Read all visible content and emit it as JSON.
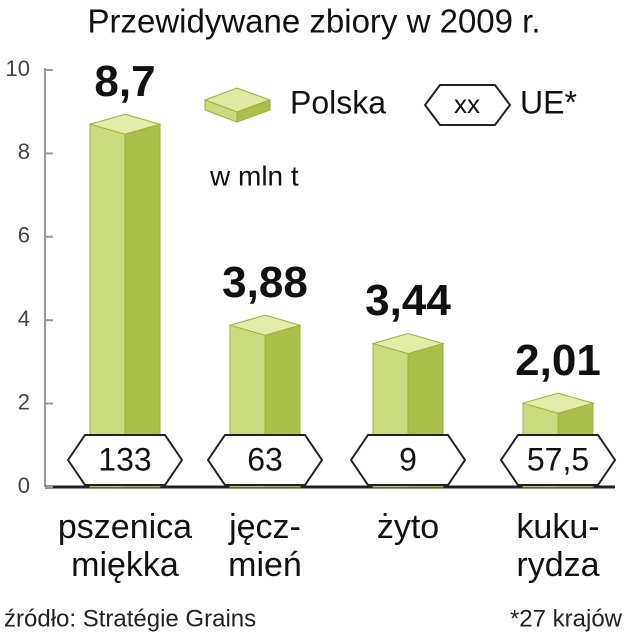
{
  "chart_data": {
    "type": "bar3d",
    "title": "Przewidywane zbiory w 2009 r.",
    "unit": "w mln t",
    "categories": [
      "pszenica\nmiękka",
      "jęcz-\nmień",
      "żyto",
      "kuku-\nrydza"
    ],
    "series": [
      {
        "name": "Polska",
        "color": "#b5c95a",
        "values": [
          8.7,
          3.88,
          3.44,
          2.01
        ],
        "value_labels": [
          "8,7",
          "3,88",
          "3,44",
          "2,01"
        ]
      },
      {
        "name": "UE*",
        "legend_sample": "xx",
        "values": [
          133,
          63,
          9,
          57.5
        ],
        "value_labels": [
          "133",
          "63",
          "9",
          "57,5"
        ]
      }
    ],
    "ylim": [
      0,
      10
    ],
    "yticks": [
      0,
      2,
      4,
      6,
      8,
      10
    ],
    "source": "źródło: Stratégie Grains",
    "note": "*27 krajów"
  }
}
